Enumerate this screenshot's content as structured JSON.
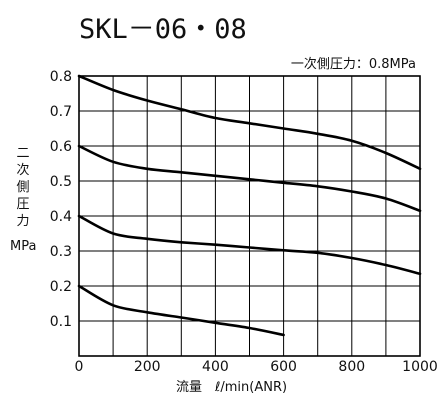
{
  "chart_data": {
    "type": "line",
    "title": "SKL－06・08",
    "annotation": "一次側圧力：0.8MPa",
    "xlabel": "流量　ℓ/min(ANR)",
    "ylabel_chars": [
      "二",
      "次",
      "側",
      "圧",
      "力"
    ],
    "ylabel_unit": "MPa",
    "xlim": [
      0,
      1000
    ],
    "ylim": [
      0,
      0.8
    ],
    "x_ticks": [
      0,
      200,
      400,
      600,
      800,
      1000
    ],
    "x_tick_labels": [
      "0",
      "200",
      "400",
      "600",
      "800",
      "1000"
    ],
    "x_grid_step": 100,
    "y_ticks": [
      0.1,
      0.2,
      0.3,
      0.4,
      0.5,
      0.6,
      0.7,
      0.8
    ],
    "y_tick_labels": [
      "0.1",
      "0.2",
      "0.3",
      "0.4",
      "0.5",
      "0.6",
      "0.7",
      "0.8"
    ],
    "grid": true,
    "series": [
      {
        "x": [
          0,
          100,
          200,
          300,
          400,
          500,
          600,
          700,
          800,
          900,
          1000
        ],
        "y": [
          0.8,
          0.76,
          0.73,
          0.705,
          0.68,
          0.665,
          0.65,
          0.635,
          0.615,
          0.58,
          0.535
        ]
      },
      {
        "x": [
          0,
          100,
          200,
          300,
          400,
          500,
          600,
          700,
          800,
          900,
          1000
        ],
        "y": [
          0.6,
          0.555,
          0.535,
          0.525,
          0.515,
          0.505,
          0.495,
          0.485,
          0.47,
          0.45,
          0.415
        ]
      },
      {
        "x": [
          0,
          100,
          200,
          300,
          400,
          500,
          600,
          700,
          800,
          900,
          1000
        ],
        "y": [
          0.4,
          0.35,
          0.335,
          0.325,
          0.318,
          0.31,
          0.302,
          0.295,
          0.28,
          0.26,
          0.235
        ]
      },
      {
        "x": [
          0,
          100,
          200,
          300,
          400,
          500,
          600
        ],
        "y": [
          0.2,
          0.145,
          0.125,
          0.11,
          0.095,
          0.08,
          0.06
        ]
      }
    ]
  }
}
